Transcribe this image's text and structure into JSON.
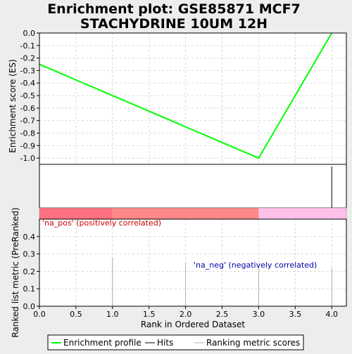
{
  "title_lines": [
    "Enrichment plot: GSE85871 MCF7",
    "STACHYDRINE 10UM 12H"
  ],
  "es_axis_label": "Enrichment score (ES)",
  "rank_axis_label": "Ranked list metric (PreRanked)",
  "x_axis_label": "Rank in Ordered Dataset",
  "pos_label": "'na_pos' (positively correlated)",
  "neg_label": "'na_neg' (negatively correlated)",
  "legend": {
    "enrichment_profile": "Enrichment profile",
    "hits": "Hits",
    "ranking_metric": "Ranking metric scores"
  },
  "colors": {
    "profile": "#00ff00",
    "hits": "#000000",
    "metric": "#b0b0b0",
    "pos_label": "#cc0000",
    "neg_label": "#0000aa",
    "band_pos_strong": "#ff7080",
    "band_pos": "#ff8888",
    "band_neg": "#ffc0e8"
  },
  "chart_data": {
    "type": "line",
    "title": "Enrichment plot: GSE85871 MCF7 STACHYDRINE 10UM 12H",
    "xlabel": "Rank in Ordered Dataset",
    "xlim": [
      0,
      4.2
    ],
    "x_ticks": [
      "0.0",
      "0.5",
      "1.0",
      "1.5",
      "2.0",
      "2.5",
      "3.0",
      "3.5",
      "4.0"
    ],
    "x_tick_values": [
      0,
      0.5,
      1.0,
      1.5,
      2.0,
      2.5,
      3.0,
      3.5,
      4.0
    ],
    "es_panel": {
      "ylabel": "Enrichment score (ES)",
      "ylim": [
        -1.05,
        0.0
      ],
      "y_ticks": [
        "0.0",
        "-0.1",
        "-0.2",
        "-0.3",
        "-0.4",
        "-0.5",
        "-0.6",
        "-0.7",
        "-0.8",
        "-0.9",
        "-1.0"
      ],
      "y_tick_values": [
        0,
        -0.1,
        -0.2,
        -0.3,
        -0.4,
        -0.5,
        -0.6,
        -0.7,
        -0.8,
        -0.9,
        -1.0
      ],
      "series": [
        {
          "name": "Enrichment profile",
          "x": [
            0,
            3,
            4
          ],
          "y": [
            -0.25,
            -1.0,
            0.0
          ]
        }
      ]
    },
    "hits": [
      4
    ],
    "band_segments": [
      {
        "from": 0,
        "to": 1,
        "zone": "pos_strong"
      },
      {
        "from": 1,
        "to": 3,
        "zone": "pos"
      },
      {
        "from": 3,
        "to": 4.2,
        "zone": "neg"
      }
    ],
    "metric_panel": {
      "ylabel": "Ranked list metric (PreRanked)",
      "ylim": [
        0,
        0.5
      ],
      "y_ticks": [
        "0.0",
        "0.1",
        "0.2",
        "0.3",
        "0.4"
      ],
      "y_tick_values": [
        0,
        0.1,
        0.2,
        0.3,
        0.4
      ],
      "series": [
        {
          "name": "Ranking metric scores",
          "x": [
            1,
            2,
            3,
            4
          ],
          "y": [
            0.28,
            0.25,
            0.23,
            0.22
          ]
        }
      ]
    },
    "grid": true,
    "legend_position": "bottom"
  }
}
